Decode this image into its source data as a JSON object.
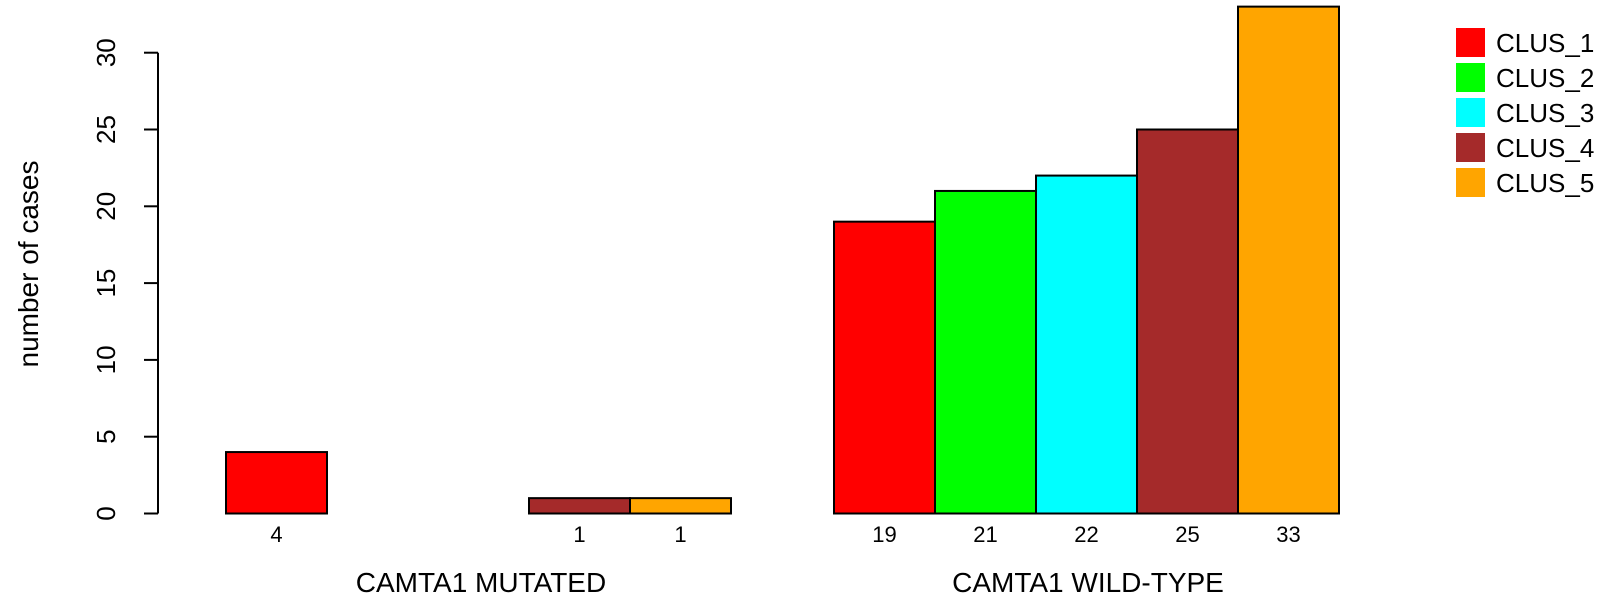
{
  "chart_data": {
    "type": "bar",
    "ylabel": "number of cases",
    "ylim": [
      0,
      33
    ],
    "yticks": [
      "0",
      "5",
      "10",
      "15",
      "20",
      "25",
      "30"
    ],
    "grid": false,
    "legend_position": "top-right",
    "categories": [
      "CAMTA1 MUTATED",
      "CAMTA1 WILD-TYPE"
    ],
    "series": [
      {
        "name": "CLUS_1",
        "color": "#ff0000",
        "values": [
          4,
          19
        ],
        "value_labels": [
          "4",
          "19"
        ]
      },
      {
        "name": "CLUS_2",
        "color": "#00ff00",
        "values": [
          0,
          21
        ],
        "value_labels": [
          "",
          "21"
        ]
      },
      {
        "name": "CLUS_3",
        "color": "#00ffff",
        "values": [
          0,
          22
        ],
        "value_labels": [
          "",
          "22"
        ]
      },
      {
        "name": "CLUS_4",
        "color": "#a52a2a",
        "values": [
          1,
          25
        ],
        "value_labels": [
          "1",
          "25"
        ]
      },
      {
        "name": "CLUS_5",
        "color": "#ffa500",
        "values": [
          1,
          33
        ],
        "value_labels": [
          "1",
          "33"
        ]
      }
    ]
  }
}
